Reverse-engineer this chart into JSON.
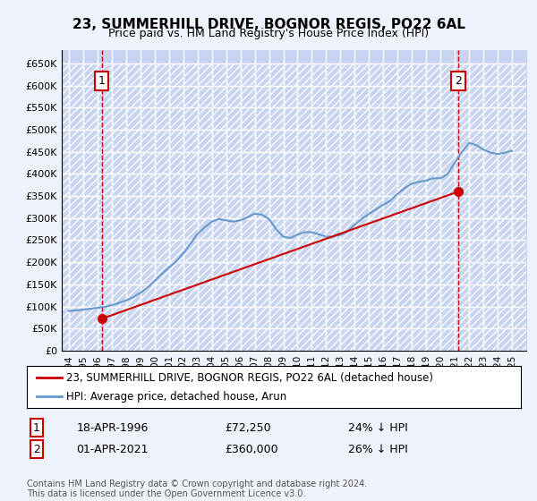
{
  "title": "23, SUMMERHILL DRIVE, BOGNOR REGIS, PO22 6AL",
  "subtitle": "Price paid vs. HM Land Registry's House Price Index (HPI)",
  "background_color": "#eef2fb",
  "plot_bg_color": "#eef2fb",
  "hatch_color": "#c8d4f0",
  "grid_color": "#ffffff",
  "ylabel_ticks": [
    "£0",
    "£50K",
    "£100K",
    "£150K",
    "£200K",
    "£250K",
    "£300K",
    "£350K",
    "£400K",
    "£450K",
    "£500K",
    "£550K",
    "£600K",
    "£650K"
  ],
  "ytick_values": [
    0,
    50000,
    100000,
    150000,
    200000,
    250000,
    300000,
    350000,
    400000,
    450000,
    500000,
    550000,
    600000,
    650000
  ],
  "ylim": [
    0,
    680000
  ],
  "xlim_start": 1993.5,
  "xlim_end": 2026.0,
  "sale1_x": 1996.3,
  "sale1_y": 72250,
  "sale2_x": 2021.25,
  "sale2_y": 360000,
  "sale1_label": "1",
  "sale2_label": "2",
  "red_line_color": "#cc0000",
  "blue_line_color": "#6699cc",
  "dashed_line_color": "#cc0000",
  "legend_label1": "23, SUMMERHILL DRIVE, BOGNOR REGIS, PO22 6AL (detached house)",
  "legend_label2": "HPI: Average price, detached house, Arun",
  "table_row1": [
    "1",
    "18-APR-1996",
    "£72,250",
    "24% ↓ HPI"
  ],
  "table_row2": [
    "2",
    "01-APR-2021",
    "£360,000",
    "26% ↓ HPI"
  ],
  "footer": "Contains HM Land Registry data © Crown copyright and database right 2024.\nThis data is licensed under the Open Government Licence v3.0.",
  "hpi_years": [
    1994,
    1994.5,
    1995,
    1995.5,
    1996,
    1996.5,
    1997,
    1997.5,
    1998,
    1998.5,
    1999,
    1999.5,
    2000,
    2000.5,
    2001,
    2001.5,
    2002,
    2002.5,
    2003,
    2003.5,
    2004,
    2004.5,
    2005,
    2005.5,
    2006,
    2006.5,
    2007,
    2007.5,
    2008,
    2008.5,
    2009,
    2009.5,
    2010,
    2010.5,
    2011,
    2011.5,
    2012,
    2012.5,
    2013,
    2013.5,
    2014,
    2014.5,
    2015,
    2015.5,
    2016,
    2016.5,
    2017,
    2017.5,
    2018,
    2018.5,
    2019,
    2019.5,
    2020,
    2020.5,
    2021,
    2021.5,
    2022,
    2022.5,
    2023,
    2023.5,
    2024,
    2024.5,
    2025
  ],
  "hpi_values": [
    90000,
    91000,
    93000,
    95000,
    97000,
    99000,
    103000,
    108000,
    114000,
    121000,
    131000,
    143000,
    158000,
    174000,
    188000,
    202000,
    220000,
    242000,
    264000,
    279000,
    292000,
    298000,
    295000,
    292000,
    295000,
    302000,
    310000,
    308000,
    298000,
    275000,
    258000,
    255000,
    263000,
    268000,
    268000,
    263000,
    258000,
    258000,
    262000,
    270000,
    285000,
    298000,
    310000,
    320000,
    330000,
    340000,
    355000,
    368000,
    378000,
    382000,
    385000,
    390000,
    390000,
    400000,
    425000,
    450000,
    470000,
    465000,
    455000,
    448000,
    445000,
    448000,
    452000
  ],
  "price_paid_years": [
    1996.3,
    2021.25
  ],
  "price_paid_values": [
    72250,
    360000
  ]
}
